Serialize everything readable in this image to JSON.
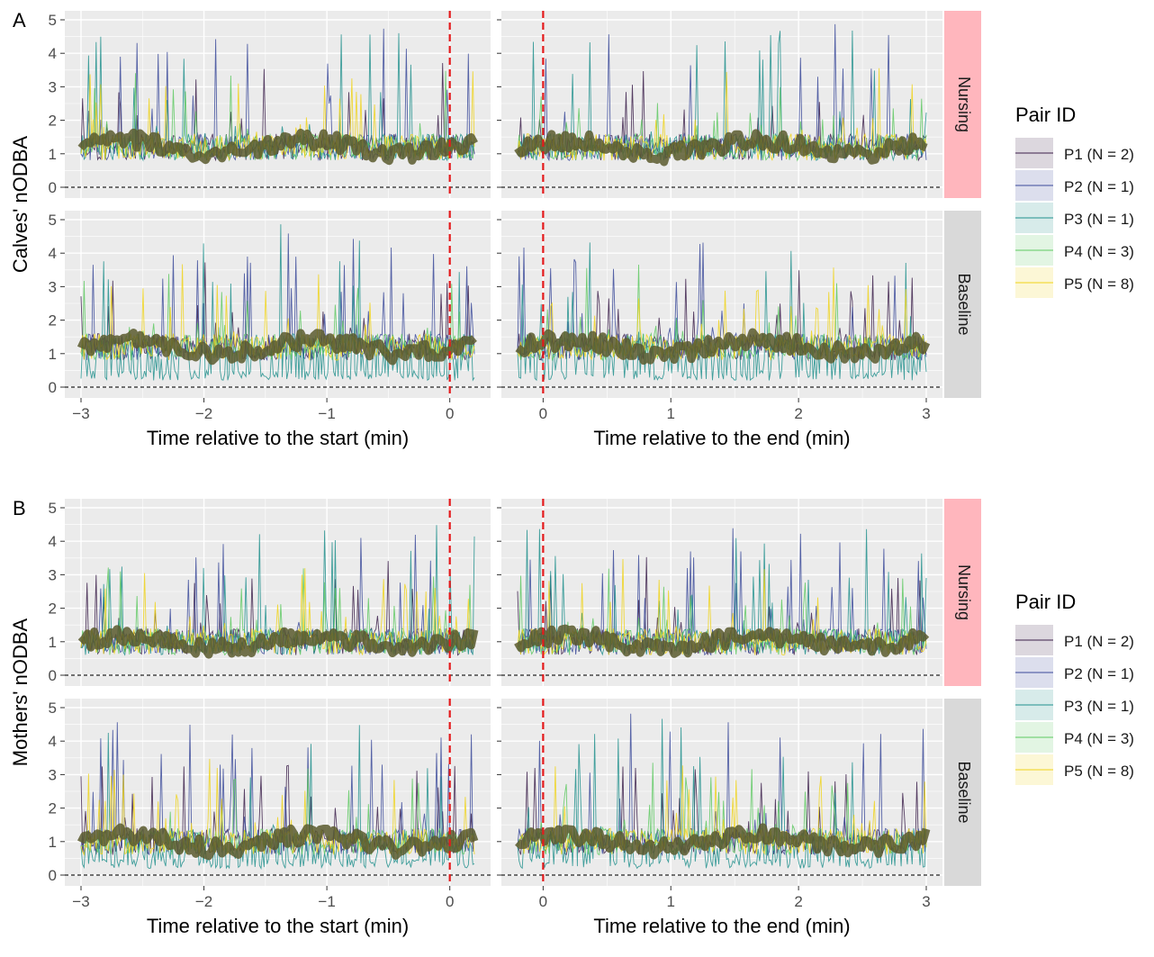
{
  "colors": {
    "panel_bg": "#ebebeb",
    "grid": "#ffffff",
    "strip_nursing": "#ffb6bd",
    "strip_baseline": "#d9d9d9",
    "event_line": "#e41a1c",
    "mean_line": "#5a5a2e",
    "zero_line": "#222222"
  },
  "chart_data": [
    {
      "type": "line",
      "panel": "A",
      "ylabel": "Calves' nODBA",
      "xlabel_left": "Time relative to the start (min)",
      "xlabel_right": "Time relative to the end (min)",
      "rows": [
        "Nursing",
        "Baseline"
      ],
      "xlim_left": [
        -3,
        0.2
      ],
      "xlim_right": [
        -0.2,
        3
      ],
      "ylim": [
        0,
        5
      ],
      "xticks_left": [
        -3,
        -2,
        -1,
        0
      ],
      "xticks_right": [
        0,
        1,
        2,
        3
      ],
      "xtick_labels_left": [
        "−3",
        "−2",
        "−1",
        "0"
      ],
      "xtick_labels_right": [
        "0",
        "1",
        "2",
        "3"
      ],
      "yticks": [
        0,
        1,
        2,
        3,
        4,
        5
      ],
      "ytick_labels": [
        "0",
        "1",
        "2",
        "3",
        "4",
        "5"
      ],
      "event_x": 0,
      "series": [
        {
          "name": "P1 (N = 2)",
          "color": "#3b1f4a"
        },
        {
          "name": "P2 (N = 1)",
          "color": "#3b4a9a"
        },
        {
          "name": "P3 (N = 1)",
          "color": "#21908d"
        },
        {
          "name": "P4 (N = 3)",
          "color": "#5ec962"
        },
        {
          "name": "P5 (N = 8)",
          "color": "#f0d31a"
        }
      ],
      "mean_level": {
        "Nursing": 1.2,
        "Baseline": 1.2
      }
    },
    {
      "type": "line",
      "panel": "B",
      "ylabel": "Mothers' nODBA",
      "xlabel_left": "Time relative to the start (min)",
      "xlabel_right": "Time relative to the end (min)",
      "rows": [
        "Nursing",
        "Baseline"
      ],
      "xlim_left": [
        -3,
        0.2
      ],
      "xlim_right": [
        -0.2,
        3
      ],
      "ylim": [
        0,
        5
      ],
      "xticks_left": [
        -3,
        -2,
        -1,
        0
      ],
      "xticks_right": [
        0,
        1,
        2,
        3
      ],
      "xtick_labels_left": [
        "−3",
        "−2",
        "−1",
        "0"
      ],
      "xtick_labels_right": [
        "0",
        "1",
        "2",
        "3"
      ],
      "yticks": [
        0,
        1,
        2,
        3,
        4,
        5
      ],
      "ytick_labels": [
        "0",
        "1",
        "2",
        "3",
        "4",
        "5"
      ],
      "event_x": 0,
      "series": [
        {
          "name": "P1 (N = 2)",
          "color": "#3b1f4a"
        },
        {
          "name": "P2 (N = 1)",
          "color": "#3b4a9a"
        },
        {
          "name": "P3 (N = 1)",
          "color": "#21908d"
        },
        {
          "name": "P4 (N = 3)",
          "color": "#5ec962"
        },
        {
          "name": "P5 (N = 8)",
          "color": "#f0d31a"
        }
      ],
      "mean_level": {
        "Nursing": 1.0,
        "Baseline": 1.0
      }
    }
  ],
  "legend": {
    "title": "Pair ID",
    "placement": "right",
    "items": [
      "P1 (N = 2)",
      "P2 (N = 1)",
      "P3 (N = 1)",
      "P4 (N = 3)",
      "P5 (N = 8)"
    ]
  }
}
